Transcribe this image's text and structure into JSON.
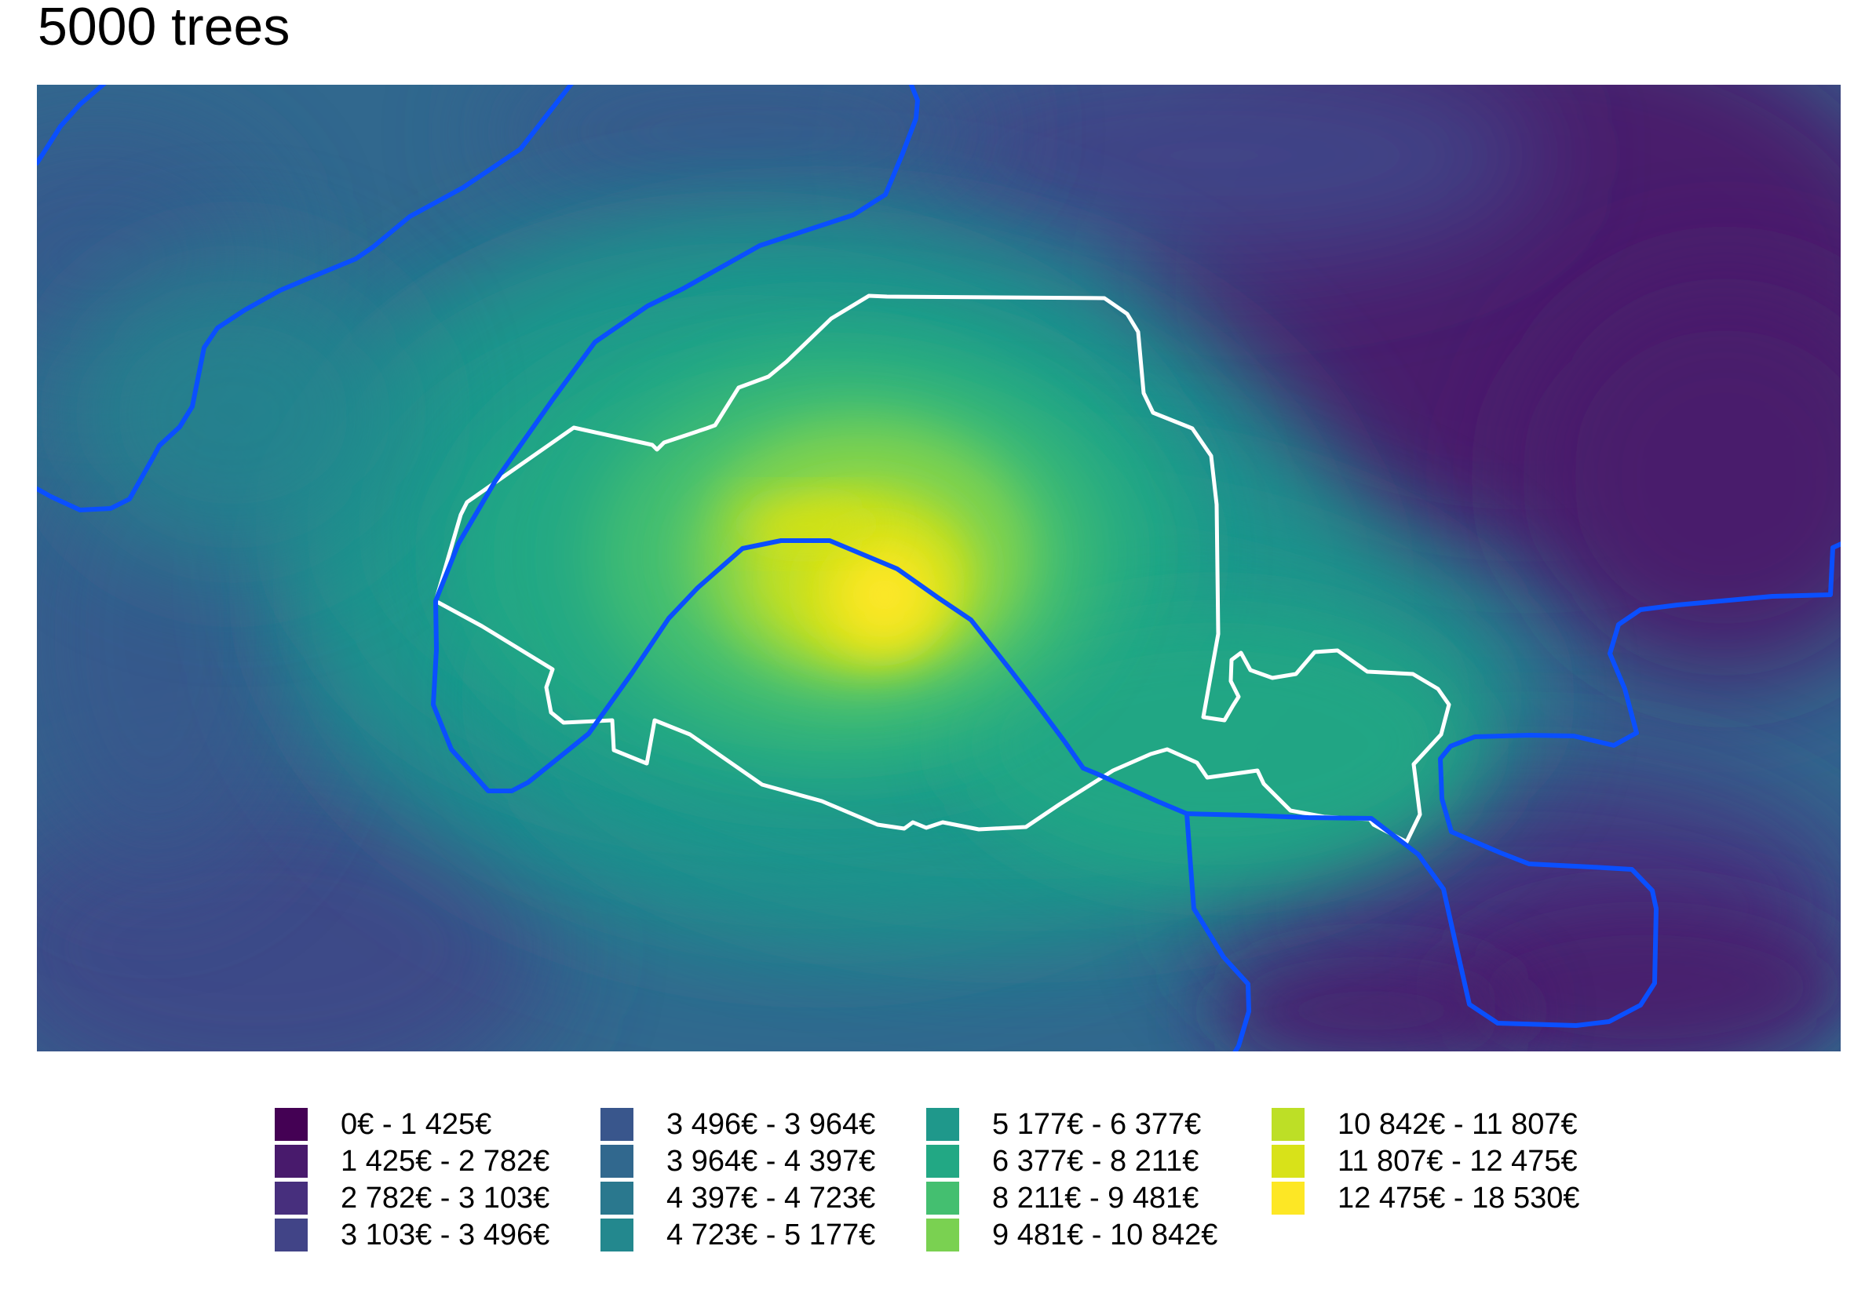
{
  "title": "5000 trees",
  "legend": {
    "columns": [
      [
        {
          "label": "0€ - 1 425€",
          "color": "#440154"
        },
        {
          "label": "1 425€ - 2 782€",
          "color": "#481a6c"
        },
        {
          "label": "2 782€ - 3 103€",
          "color": "#472f7d"
        },
        {
          "label": "3 103€ - 3 496€",
          "color": "#414487"
        }
      ],
      [
        {
          "label": "3 496€ - 3 964€",
          "color": "#39568c"
        },
        {
          "label": "3 964€ - 4 397€",
          "color": "#31688e"
        },
        {
          "label": "4 397€ - 4 723€",
          "color": "#2a788e"
        },
        {
          "label": "4 723€ - 5 177€",
          "color": "#23888e"
        }
      ],
      [
        {
          "label": "5 177€ - 6 377€",
          "color": "#1f988b"
        },
        {
          "label": "6 377€ - 8 211€",
          "color": "#22a884"
        },
        {
          "label": "8 211€ - 9 481€",
          "color": "#44bf70"
        },
        {
          "label": "9 481€ - 10 842€",
          "color": "#7ad151"
        }
      ],
      [
        {
          "label": "10 842€ - 11 807€",
          "color": "#bddf26"
        },
        {
          "label": "11 807€ - 12 475€",
          "color": "#d8e219"
        },
        {
          "label": "12 475€ - 18 530€",
          "color": "#fde725"
        }
      ]
    ]
  },
  "colors": {
    "river": "#0a4fff",
    "boundary": "#ffffff"
  }
}
